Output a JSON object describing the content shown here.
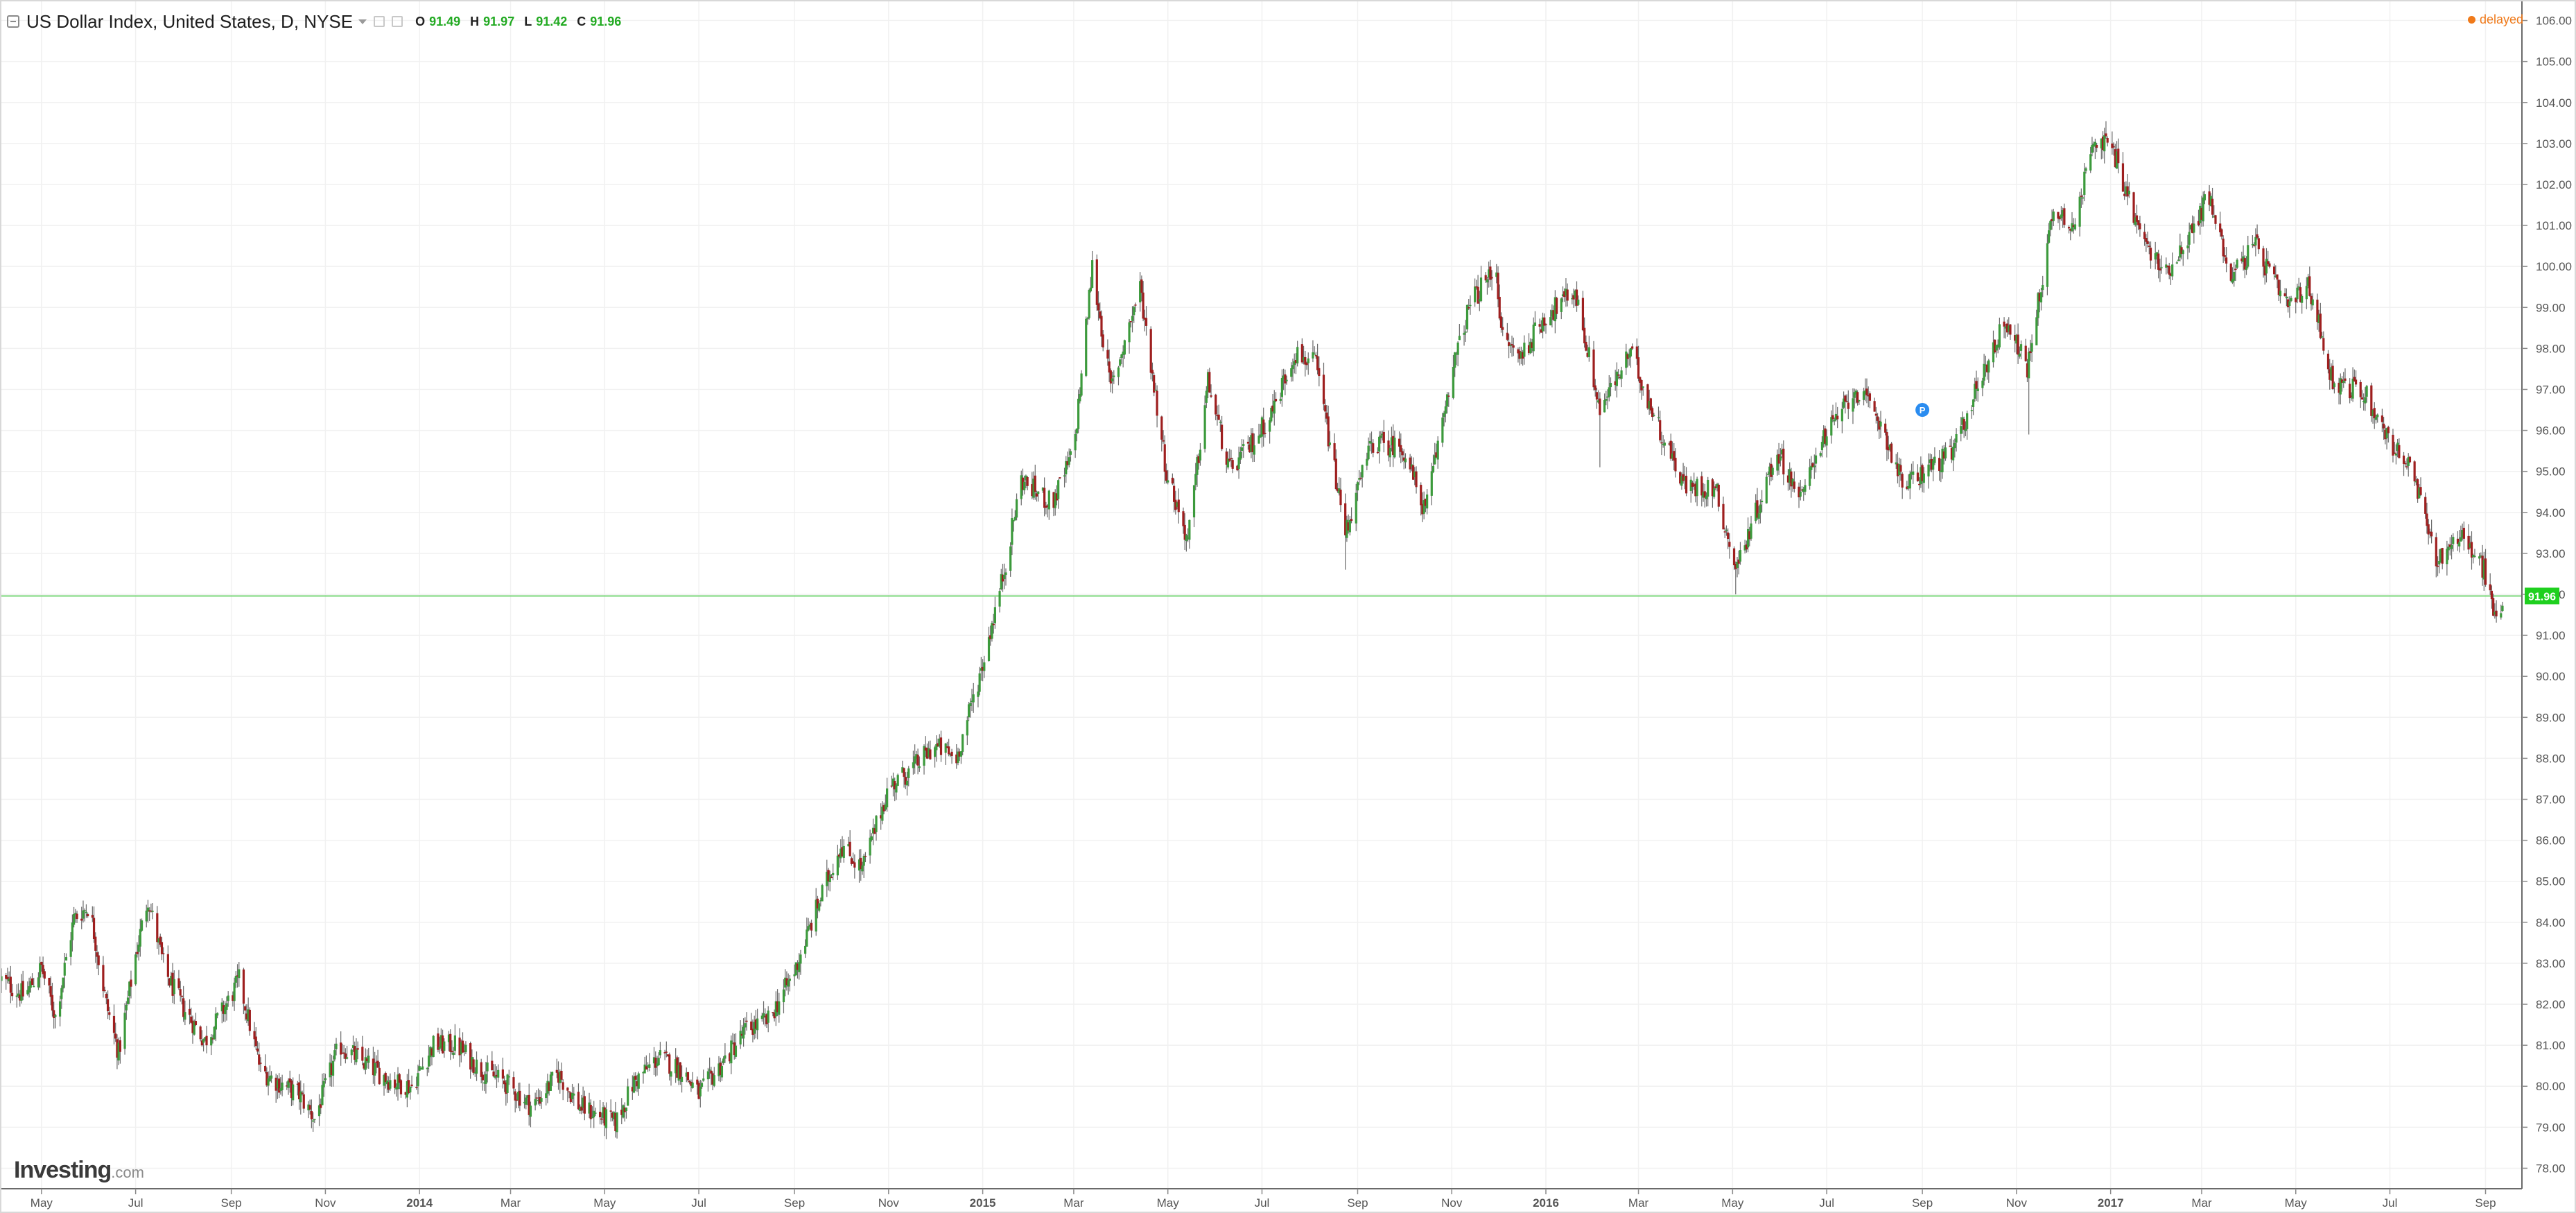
{
  "legend": {
    "title": "US Dollar Index, United States, D, NYSE",
    "open_label": "O",
    "open": "91.49",
    "high_label": "H",
    "high": "91.97",
    "low_label": "L",
    "low": "91.42",
    "close_label": "C",
    "close": "91.96"
  },
  "delayed_label": "delayed",
  "logo": {
    "main": "Investing",
    "suffix": ".com"
  },
  "marker_label": "P",
  "colors": {
    "up": "#3c9a3c",
    "down": "#9e1f1f",
    "wick": "#6a6a6a",
    "grid": "#f1f1f1",
    "price_line": "#7dd87d",
    "price_tag": "#1fd01f",
    "marker": "#2a8cf0"
  },
  "chart_data": {
    "type": "candlestick",
    "title": "",
    "xlabel": "",
    "ylabel": "",
    "ylim": [
      77.5,
      106.5
    ],
    "y_ticks": [
      "78.00",
      "79.00",
      "80.00",
      "81.00",
      "82.00",
      "83.00",
      "84.00",
      "85.00",
      "86.00",
      "87.00",
      "88.00",
      "89.00",
      "90.00",
      "91.00",
      "92.00",
      "93.00",
      "94.00",
      "95.00",
      "96.00",
      "97.00",
      "98.00",
      "99.00",
      "100.00",
      "101.00",
      "102.00",
      "103.00",
      "104.00",
      "105.00",
      "106.00"
    ],
    "x_range": [
      "2013-04-05",
      "2017-09-12"
    ],
    "x_ticks": [
      {
        "label": "May",
        "date": "2013-05-01",
        "bold": false
      },
      {
        "label": "Jul",
        "date": "2013-07-01",
        "bold": false
      },
      {
        "label": "Sep",
        "date": "2013-09-01",
        "bold": false
      },
      {
        "label": "Nov",
        "date": "2013-11-01",
        "bold": false
      },
      {
        "label": "2014",
        "date": "2014-01-01",
        "bold": true
      },
      {
        "label": "Mar",
        "date": "2014-03-01",
        "bold": false
      },
      {
        "label": "May",
        "date": "2014-05-01",
        "bold": false
      },
      {
        "label": "Jul",
        "date": "2014-07-01",
        "bold": false
      },
      {
        "label": "Sep",
        "date": "2014-09-01",
        "bold": false
      },
      {
        "label": "Nov",
        "date": "2014-11-01",
        "bold": false
      },
      {
        "label": "2015",
        "date": "2015-01-01",
        "bold": true
      },
      {
        "label": "Mar",
        "date": "2015-03-01",
        "bold": false
      },
      {
        "label": "May",
        "date": "2015-05-01",
        "bold": false
      },
      {
        "label": "Jul",
        "date": "2015-07-01",
        "bold": false
      },
      {
        "label": "Sep",
        "date": "2015-09-01",
        "bold": false
      },
      {
        "label": "Nov",
        "date": "2015-11-01",
        "bold": false
      },
      {
        "label": "2016",
        "date": "2016-01-01",
        "bold": true
      },
      {
        "label": "Mar",
        "date": "2016-03-01",
        "bold": false
      },
      {
        "label": "May",
        "date": "2016-05-01",
        "bold": false
      },
      {
        "label": "Jul",
        "date": "2016-07-01",
        "bold": false
      },
      {
        "label": "Sep",
        "date": "2016-09-01",
        "bold": false
      },
      {
        "label": "Nov",
        "date": "2016-11-01",
        "bold": false
      },
      {
        "label": "2017",
        "date": "2017-01-01",
        "bold": true
      },
      {
        "label": "Mar",
        "date": "2017-03-01",
        "bold": false
      },
      {
        "label": "May",
        "date": "2017-05-01",
        "bold": false
      },
      {
        "label": "Jul",
        "date": "2017-07-01",
        "bold": false
      },
      {
        "label": "Sep",
        "date": "2017-09-01",
        "bold": false
      }
    ],
    "current_price": 91.96,
    "current_price_label": "91.96",
    "marker_date": "2016-09-01",
    "marker_value": 96.5,
    "grid": true,
    "close_path": [
      {
        "date": "2013-04-05",
        "close": 82.6
      },
      {
        "date": "2013-04-20",
        "close": 82.2
      },
      {
        "date": "2013-05-01",
        "close": 82.9
      },
      {
        "date": "2013-05-10",
        "close": 81.7
      },
      {
        "date": "2013-05-22",
        "close": 84.1
      },
      {
        "date": "2013-06-01",
        "close": 84.4
      },
      {
        "date": "2013-06-12",
        "close": 82.0
      },
      {
        "date": "2013-06-20",
        "close": 80.8
      },
      {
        "date": "2013-07-01",
        "close": 83.2
      },
      {
        "date": "2013-07-09",
        "close": 84.6
      },
      {
        "date": "2013-07-20",
        "close": 82.8
      },
      {
        "date": "2013-08-01",
        "close": 81.9
      },
      {
        "date": "2013-08-15",
        "close": 81.1
      },
      {
        "date": "2013-09-01",
        "close": 82.2
      },
      {
        "date": "2013-09-06",
        "close": 82.6
      },
      {
        "date": "2013-09-20",
        "close": 80.4
      },
      {
        "date": "2013-10-01",
        "close": 80.1
      },
      {
        "date": "2013-10-15",
        "close": 79.8
      },
      {
        "date": "2013-10-25",
        "close": 79.2
      },
      {
        "date": "2013-11-10",
        "close": 81.0
      },
      {
        "date": "2013-11-25",
        "close": 80.6
      },
      {
        "date": "2013-12-15",
        "close": 80.1
      },
      {
        "date": "2013-12-27",
        "close": 80.0
      },
      {
        "date": "2014-01-10",
        "close": 81.0
      },
      {
        "date": "2014-01-25",
        "close": 81.0
      },
      {
        "date": "2014-02-10",
        "close": 80.4
      },
      {
        "date": "2014-02-25",
        "close": 80.1
      },
      {
        "date": "2014-03-15",
        "close": 79.5
      },
      {
        "date": "2014-04-01",
        "close": 80.3
      },
      {
        "date": "2014-04-15",
        "close": 79.5
      },
      {
        "date": "2014-05-08",
        "close": 79.1
      },
      {
        "date": "2014-05-20",
        "close": 80.1
      },
      {
        "date": "2014-06-05",
        "close": 80.7
      },
      {
        "date": "2014-06-20",
        "close": 80.4
      },
      {
        "date": "2014-07-01",
        "close": 79.8
      },
      {
        "date": "2014-07-15",
        "close": 80.5
      },
      {
        "date": "2014-08-01",
        "close": 81.4
      },
      {
        "date": "2014-08-15",
        "close": 81.6
      },
      {
        "date": "2014-09-01",
        "close": 82.8
      },
      {
        "date": "2014-09-15",
        "close": 84.3
      },
      {
        "date": "2014-10-01",
        "close": 85.9
      },
      {
        "date": "2014-10-15",
        "close": 85.3
      },
      {
        "date": "2014-11-01",
        "close": 87.3
      },
      {
        "date": "2014-11-15",
        "close": 87.7
      },
      {
        "date": "2014-12-01",
        "close": 88.3
      },
      {
        "date": "2014-12-15",
        "close": 88.0
      },
      {
        "date": "2015-01-01",
        "close": 90.3
      },
      {
        "date": "2015-01-15",
        "close": 92.6
      },
      {
        "date": "2015-01-26",
        "close": 94.8
      },
      {
        "date": "2015-02-15",
        "close": 94.2
      },
      {
        "date": "2015-03-01",
        "close": 95.5
      },
      {
        "date": "2015-03-13",
        "close": 100.0
      },
      {
        "date": "2015-03-25",
        "close": 97.0
      },
      {
        "date": "2015-04-13",
        "close": 99.5
      },
      {
        "date": "2015-04-30",
        "close": 95.0
      },
      {
        "date": "2015-05-14",
        "close": 93.3
      },
      {
        "date": "2015-05-27",
        "close": 97.2
      },
      {
        "date": "2015-06-10",
        "close": 95.0
      },
      {
        "date": "2015-06-25",
        "close": 95.7
      },
      {
        "date": "2015-07-08",
        "close": 96.5
      },
      {
        "date": "2015-07-22",
        "close": 97.9
      },
      {
        "date": "2015-08-05",
        "close": 97.6
      },
      {
        "date": "2015-08-24",
        "close": 93.5
      },
      {
        "date": "2015-09-10",
        "close": 95.7
      },
      {
        "date": "2015-09-30",
        "close": 95.6
      },
      {
        "date": "2015-10-15",
        "close": 94.0
      },
      {
        "date": "2015-10-30",
        "close": 97.1
      },
      {
        "date": "2015-11-13",
        "close": 99.1
      },
      {
        "date": "2015-11-30",
        "close": 100.0
      },
      {
        "date": "2015-12-03",
        "close": 98.3
      },
      {
        "date": "2015-12-15",
        "close": 97.8
      },
      {
        "date": "2016-01-01",
        "close": 98.8
      },
      {
        "date": "2016-01-20",
        "close": 99.4
      },
      {
        "date": "2016-02-05",
        "close": 96.5
      },
      {
        "date": "2016-02-25",
        "close": 97.9
      },
      {
        "date": "2016-03-15",
        "close": 96.0
      },
      {
        "date": "2016-04-01",
        "close": 94.6
      },
      {
        "date": "2016-04-20",
        "close": 94.6
      },
      {
        "date": "2016-05-03",
        "close": 92.6
      },
      {
        "date": "2016-05-30",
        "close": 95.5
      },
      {
        "date": "2016-06-15",
        "close": 94.3
      },
      {
        "date": "2016-06-24",
        "close": 95.5
      },
      {
        "date": "2016-07-20",
        "close": 97.0
      },
      {
        "date": "2016-08-05",
        "close": 96.2
      },
      {
        "date": "2016-08-20",
        "close": 94.6
      },
      {
        "date": "2016-09-05",
        "close": 95.1
      },
      {
        "date": "2016-09-20",
        "close": 95.4
      },
      {
        "date": "2016-10-10",
        "close": 97.4
      },
      {
        "date": "2016-10-25",
        "close": 98.7
      },
      {
        "date": "2016-11-08",
        "close": 97.5
      },
      {
        "date": "2016-11-25",
        "close": 101.4
      },
      {
        "date": "2016-12-10",
        "close": 101.0
      },
      {
        "date": "2016-12-20",
        "close": 103.2
      },
      {
        "date": "2017-01-03",
        "close": 102.8
      },
      {
        "date": "2017-01-20",
        "close": 100.8
      },
      {
        "date": "2017-02-05",
        "close": 99.8
      },
      {
        "date": "2017-02-25",
        "close": 101.0
      },
      {
        "date": "2017-03-05",
        "close": 101.8
      },
      {
        "date": "2017-03-20",
        "close": 99.8
      },
      {
        "date": "2017-04-05",
        "close": 100.5
      },
      {
        "date": "2017-04-25",
        "close": 99.0
      },
      {
        "date": "2017-05-10",
        "close": 99.5
      },
      {
        "date": "2017-05-25",
        "close": 97.2
      },
      {
        "date": "2017-06-15",
        "close": 96.9
      },
      {
        "date": "2017-06-30",
        "close": 95.8
      },
      {
        "date": "2017-07-15",
        "close": 95.0
      },
      {
        "date": "2017-08-01",
        "close": 92.8
      },
      {
        "date": "2017-08-15",
        "close": 93.5
      },
      {
        "date": "2017-08-31",
        "close": 92.6
      },
      {
        "date": "2017-09-08",
        "close": 91.3
      },
      {
        "date": "2017-09-12",
        "close": 91.96
      }
    ],
    "spikes": [
      {
        "date": "2016-02-05",
        "low": 95.1
      },
      {
        "date": "2015-08-24",
        "low": 92.6
      },
      {
        "date": "2016-11-09",
        "low": 95.9
      },
      {
        "date": "2016-05-03",
        "low": 92.0
      }
    ]
  }
}
